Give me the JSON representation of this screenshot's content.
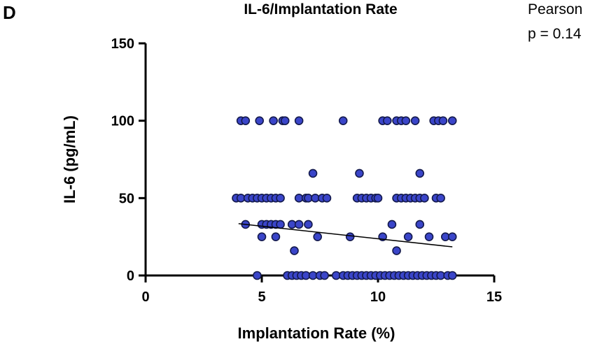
{
  "panel_letter": "D",
  "stats": {
    "test": "Pearson",
    "p_value": "p = 0.14"
  },
  "chart_data": {
    "type": "scatter",
    "title": "IL-6/Implantation Rate",
    "xlabel": "Implantation Rate (%)",
    "ylabel": "IL-6  (pg/mL)",
    "xlim": [
      0,
      15
    ],
    "ylim": [
      0,
      150
    ],
    "xticks": [
      0,
      5,
      10,
      15
    ],
    "yticks": [
      0,
      50,
      100,
      150
    ],
    "grid": false,
    "marker_color": "#3a45c9",
    "trendline": {
      "x": [
        4.0,
        13.2
      ],
      "y": [
        33.5,
        18.5
      ]
    },
    "points": [
      {
        "x": 4.1,
        "y": 100
      },
      {
        "x": 4.3,
        "y": 100
      },
      {
        "x": 4.9,
        "y": 100
      },
      {
        "x": 5.5,
        "y": 100
      },
      {
        "x": 5.9,
        "y": 100
      },
      {
        "x": 6.0,
        "y": 100
      },
      {
        "x": 6.6,
        "y": 100
      },
      {
        "x": 8.5,
        "y": 100
      },
      {
        "x": 10.2,
        "y": 100
      },
      {
        "x": 10.4,
        "y": 100
      },
      {
        "x": 10.8,
        "y": 100
      },
      {
        "x": 11.0,
        "y": 100
      },
      {
        "x": 11.2,
        "y": 100
      },
      {
        "x": 11.6,
        "y": 100
      },
      {
        "x": 12.4,
        "y": 100
      },
      {
        "x": 12.6,
        "y": 100
      },
      {
        "x": 12.8,
        "y": 100
      },
      {
        "x": 13.2,
        "y": 100
      },
      {
        "x": 7.2,
        "y": 66
      },
      {
        "x": 9.2,
        "y": 66
      },
      {
        "x": 11.8,
        "y": 66
      },
      {
        "x": 3.9,
        "y": 50
      },
      {
        "x": 4.1,
        "y": 50
      },
      {
        "x": 4.4,
        "y": 50
      },
      {
        "x": 4.6,
        "y": 50
      },
      {
        "x": 4.8,
        "y": 50
      },
      {
        "x": 5.0,
        "y": 50
      },
      {
        "x": 5.2,
        "y": 50
      },
      {
        "x": 5.4,
        "y": 50
      },
      {
        "x": 5.6,
        "y": 50
      },
      {
        "x": 5.8,
        "y": 50
      },
      {
        "x": 6.6,
        "y": 50
      },
      {
        "x": 6.9,
        "y": 50
      },
      {
        "x": 7.0,
        "y": 50
      },
      {
        "x": 7.3,
        "y": 50
      },
      {
        "x": 7.6,
        "y": 50
      },
      {
        "x": 7.8,
        "y": 50
      },
      {
        "x": 9.1,
        "y": 50
      },
      {
        "x": 9.3,
        "y": 50
      },
      {
        "x": 9.5,
        "y": 50
      },
      {
        "x": 9.7,
        "y": 50
      },
      {
        "x": 9.9,
        "y": 50
      },
      {
        "x": 10.0,
        "y": 50
      },
      {
        "x": 10.8,
        "y": 50
      },
      {
        "x": 11.0,
        "y": 50
      },
      {
        "x": 11.2,
        "y": 50
      },
      {
        "x": 11.4,
        "y": 50
      },
      {
        "x": 11.6,
        "y": 50
      },
      {
        "x": 11.8,
        "y": 50
      },
      {
        "x": 12.0,
        "y": 50
      },
      {
        "x": 12.5,
        "y": 50
      },
      {
        "x": 12.7,
        "y": 50
      },
      {
        "x": 4.3,
        "y": 33
      },
      {
        "x": 5.0,
        "y": 33
      },
      {
        "x": 5.2,
        "y": 33
      },
      {
        "x": 5.4,
        "y": 33
      },
      {
        "x": 5.6,
        "y": 33
      },
      {
        "x": 5.8,
        "y": 33
      },
      {
        "x": 6.3,
        "y": 33
      },
      {
        "x": 6.6,
        "y": 33
      },
      {
        "x": 7.0,
        "y": 33
      },
      {
        "x": 10.6,
        "y": 33
      },
      {
        "x": 11.8,
        "y": 33
      },
      {
        "x": 5.0,
        "y": 25
      },
      {
        "x": 5.6,
        "y": 25
      },
      {
        "x": 7.4,
        "y": 25
      },
      {
        "x": 8.8,
        "y": 25
      },
      {
        "x": 10.2,
        "y": 25
      },
      {
        "x": 11.3,
        "y": 25
      },
      {
        "x": 12.2,
        "y": 25
      },
      {
        "x": 12.9,
        "y": 25
      },
      {
        "x": 13.2,
        "y": 25
      },
      {
        "x": 6.4,
        "y": 16
      },
      {
        "x": 10.8,
        "y": 16
      },
      {
        "x": 4.8,
        "y": 0
      },
      {
        "x": 6.1,
        "y": 0
      },
      {
        "x": 6.3,
        "y": 0
      },
      {
        "x": 6.5,
        "y": 0
      },
      {
        "x": 6.7,
        "y": 0
      },
      {
        "x": 6.9,
        "y": 0
      },
      {
        "x": 7.2,
        "y": 0
      },
      {
        "x": 7.5,
        "y": 0
      },
      {
        "x": 7.7,
        "y": 0
      },
      {
        "x": 8.2,
        "y": 0
      },
      {
        "x": 8.5,
        "y": 0
      },
      {
        "x": 8.7,
        "y": 0
      },
      {
        "x": 8.9,
        "y": 0
      },
      {
        "x": 9.1,
        "y": 0
      },
      {
        "x": 9.3,
        "y": 0
      },
      {
        "x": 9.5,
        "y": 0
      },
      {
        "x": 9.7,
        "y": 0
      },
      {
        "x": 9.9,
        "y": 0
      },
      {
        "x": 10.1,
        "y": 0
      },
      {
        "x": 10.3,
        "y": 0
      },
      {
        "x": 10.5,
        "y": 0
      },
      {
        "x": 10.7,
        "y": 0
      },
      {
        "x": 10.9,
        "y": 0
      },
      {
        "x": 11.1,
        "y": 0
      },
      {
        "x": 11.3,
        "y": 0
      },
      {
        "x": 11.5,
        "y": 0
      },
      {
        "x": 11.7,
        "y": 0
      },
      {
        "x": 11.9,
        "y": 0
      },
      {
        "x": 12.1,
        "y": 0
      },
      {
        "x": 12.3,
        "y": 0
      },
      {
        "x": 12.5,
        "y": 0
      },
      {
        "x": 12.7,
        "y": 0
      },
      {
        "x": 13.0,
        "y": 0
      },
      {
        "x": 13.2,
        "y": 0
      }
    ]
  }
}
